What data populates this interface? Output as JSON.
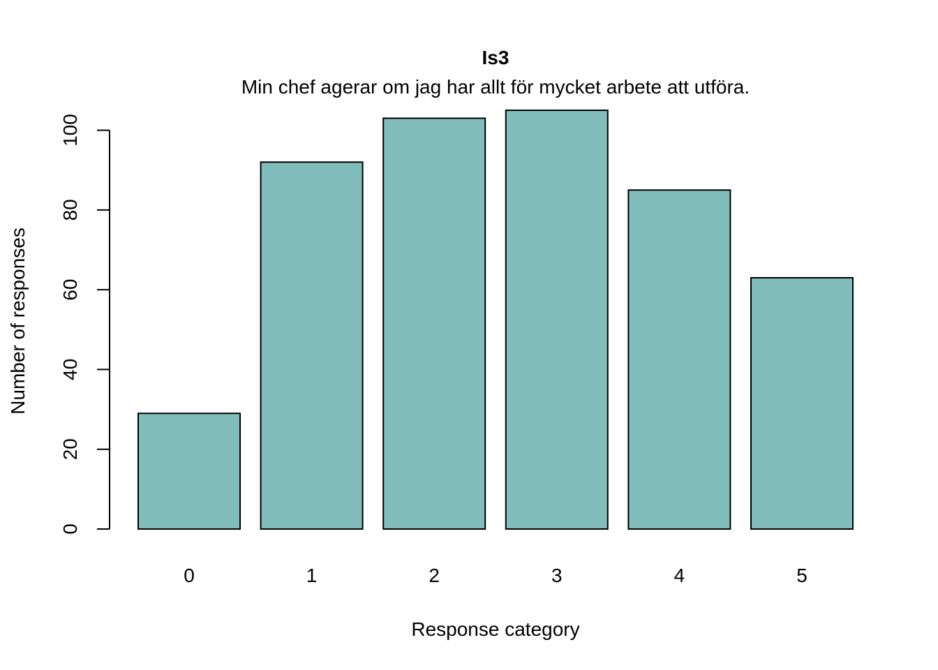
{
  "chart_data": {
    "type": "bar",
    "title": "Is3",
    "subtitle": "Min chef agerar om jag har allt för mycket arbete att utföra.",
    "xlabel": "Response category",
    "ylabel": "Number of responses",
    "categories": [
      "0",
      "1",
      "2",
      "3",
      "4",
      "5"
    ],
    "values": [
      29,
      92,
      103,
      105,
      85,
      63
    ],
    "ylim": [
      0,
      105
    ],
    "yticks": [
      "0",
      "20",
      "40",
      "60",
      "80",
      "100"
    ],
    "grid": false,
    "bar_color": "#80bdbb",
    "bar_border_color": "#000000"
  }
}
